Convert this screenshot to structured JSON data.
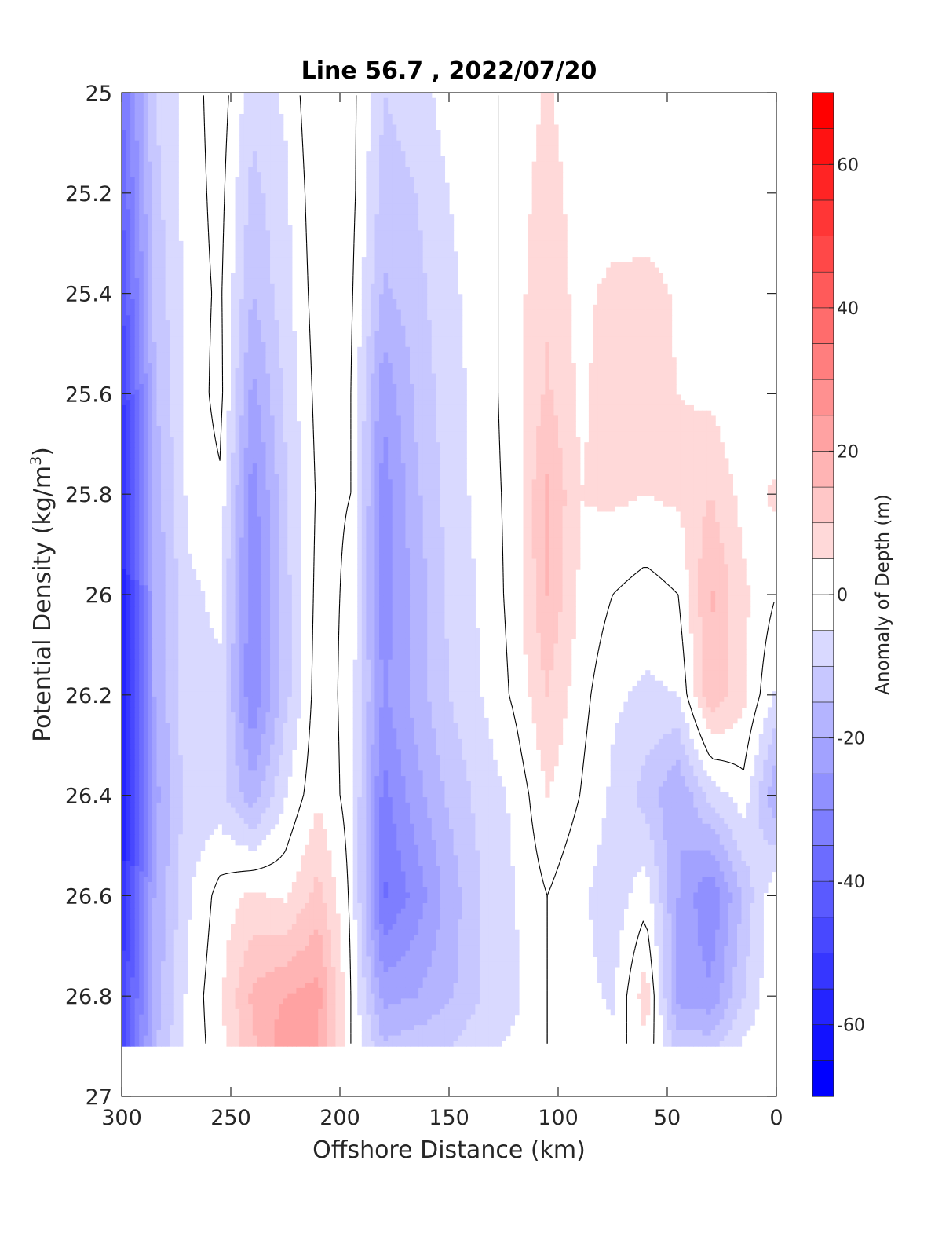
{
  "chart_data": {
    "type": "heatmap",
    "title": "Line 56.7 , 2022/07/20",
    "xlabel": "Offshore Distance (km)",
    "ylabel_main": "Potential Density (kg/m",
    "ylabel_sup": "3",
    "ylabel_close": ")",
    "colorbar_label": "Anomaly of Depth (m)",
    "xlim": [
      300,
      0
    ],
    "ylim": [
      25,
      27
    ],
    "x_reversed": true,
    "y_reversed": true,
    "xticks": [
      "300",
      "250",
      "200",
      "150",
      "100",
      "50",
      "0"
    ],
    "xtick_values": [
      300,
      250,
      200,
      150,
      100,
      50,
      0
    ],
    "yticks": [
      "25",
      "25.2",
      "25.4",
      "25.6",
      "25.8",
      "26",
      "26.2",
      "26.4",
      "26.6",
      "26.8",
      "27"
    ],
    "ytick_values": [
      25,
      25.2,
      25.4,
      25.6,
      25.8,
      26,
      26.2,
      26.4,
      26.6,
      26.8,
      27
    ],
    "colorbar": {
      "range": [
        -70,
        70
      ],
      "step": 5,
      "ticks": [
        "60",
        "40",
        "20",
        "0",
        "-20",
        "-40",
        "-60"
      ],
      "tick_values": [
        60,
        40,
        20,
        0,
        -20,
        -40,
        -60
      ],
      "negative_color": "#0000ff",
      "positive_color": "#ff0000",
      "zero_color": "#ffffff"
    },
    "contour_zero_color": "#000000",
    "grid": false,
    "x": [
      300,
      285,
      270,
      255,
      240,
      225,
      210,
      195,
      180,
      165,
      150,
      135,
      120,
      105,
      90,
      75,
      60,
      45,
      30,
      15,
      0
    ],
    "y": [
      25,
      25.2,
      25.4,
      25.6,
      25.8,
      26,
      26.2,
      26.4,
      26.6,
      26.8,
      26.9
    ],
    "z": [
      [
        -35,
        -10,
        -3,
        3,
        -8,
        -4,
        5,
        2,
        -10,
        -8,
        -2,
        0,
        0,
        6,
        0,
        0,
        0,
        0,
        0,
        0,
        0
      ],
      [
        -40,
        -12,
        -3,
        2,
        -12,
        -6,
        4,
        2,
        -12,
        -10,
        -5,
        -2,
        2,
        8,
        2,
        0,
        0,
        0,
        0,
        0,
        0
      ],
      [
        -45,
        -14,
        -3,
        1,
        -15,
        -7,
        3,
        1,
        -16,
        -12,
        -6,
        -3,
        3,
        9,
        3,
        7,
        8,
        4,
        0,
        0,
        0
      ],
      [
        -52,
        -16,
        -4,
        2,
        -22,
        -9,
        2,
        0,
        -24,
        -14,
        -7,
        -3,
        3,
        11,
        4,
        8,
        7,
        5,
        4,
        0,
        0
      ],
      [
        -56,
        -18,
        -4,
        -1,
        -28,
        -11,
        1,
        0,
        -28,
        -16,
        -8,
        -3,
        2,
        16,
        5,
        6,
        5,
        6,
        10,
        3,
        6
      ],
      [
        -58,
        -20,
        -6,
        -4,
        -30,
        -12,
        2,
        -1,
        -28,
        -18,
        -9,
        -4,
        2,
        15,
        4,
        0,
        -2,
        0,
        16,
        6,
        0
      ],
      [
        -58,
        -20,
        -6,
        -6,
        -30,
        -12,
        3,
        -2,
        -26,
        -18,
        -10,
        -5,
        1,
        10,
        2,
        -4,
        -6,
        -5,
        14,
        6,
        -6
      ],
      [
        -62,
        -22,
        -8,
        -8,
        -18,
        -5,
        4,
        -2,
        -32,
        -22,
        -14,
        -8,
        -4,
        5,
        0,
        -6,
        -12,
        -20,
        -8,
        -2,
        -20
      ],
      [
        -55,
        -20,
        -6,
        2,
        6,
        4,
        12,
        -1,
        -36,
        -28,
        -18,
        -10,
        -5,
        0,
        -4,
        -8,
        -2,
        -20,
        -30,
        -14,
        0
      ],
      [
        -50,
        -18,
        -4,
        4,
        16,
        20,
        22,
        0,
        -22,
        -20,
        -16,
        -10,
        -6,
        0,
        -3,
        -6,
        8,
        -22,
        -24,
        -10,
        0
      ],
      [
        -48,
        -16,
        -4,
        3,
        14,
        24,
        20,
        0,
        -14,
        -12,
        -10,
        -6,
        -4,
        0,
        -2,
        -3,
        4,
        -12,
        -12,
        -4,
        0
      ]
    ],
    "data_mask_notes": "no data for density greater than 26.9"
  }
}
